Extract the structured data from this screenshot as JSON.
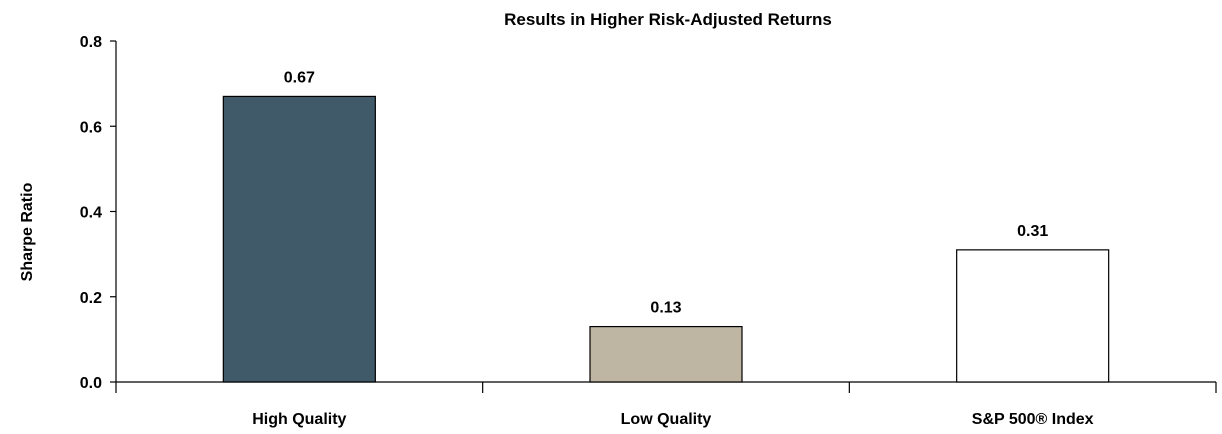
{
  "chart_data": {
    "type": "bar",
    "title": "Results in Higher Risk-Adjusted Returns",
    "xlabel": "",
    "ylabel": "Sharpe Ratio",
    "categories": [
      "High Quality",
      "Low Quality",
      "S&P 500® Index"
    ],
    "values": [
      0.67,
      0.13,
      0.31
    ],
    "data_labels": [
      "0.67",
      "0.13",
      "0.31"
    ],
    "colors": [
      "#415a6a",
      "#beb6a2",
      "#ffffff"
    ],
    "ylim": [
      0,
      0.8
    ],
    "yticks": [
      0.0,
      0.2,
      0.4,
      0.6,
      0.8
    ],
    "ytick_labels": [
      "0.0",
      "0.2",
      "0.4",
      "0.6",
      "0.8"
    ],
    "grid": false,
    "legend": "none"
  }
}
